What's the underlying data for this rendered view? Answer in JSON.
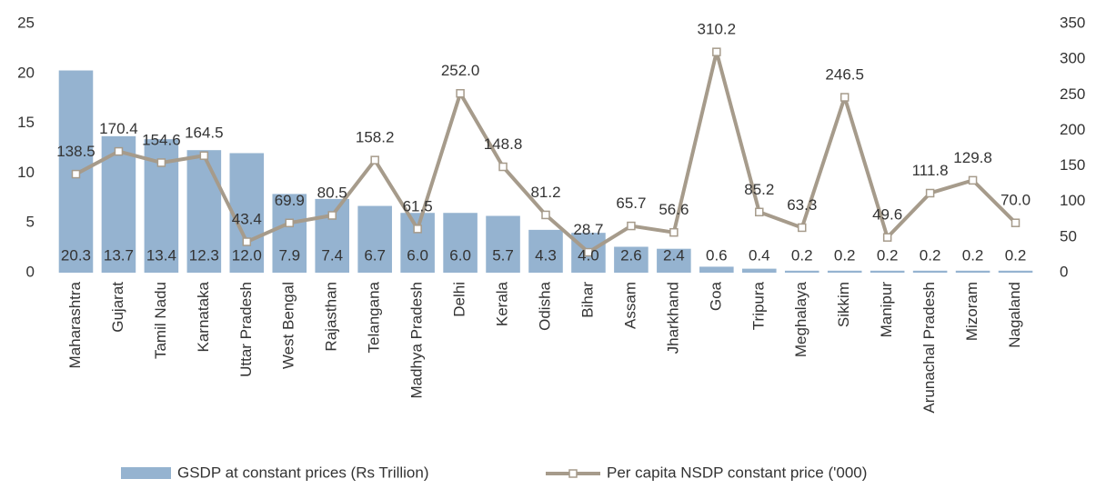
{
  "chart_data": {
    "type": "bar-line",
    "categories": [
      "Maharashtra",
      "Gujarat",
      "Tamil Nadu",
      "Karnataka",
      "Uttar Pradesh",
      "West Bengal",
      "Rajasthan",
      "Telangana",
      "Madhya Pradesh",
      "Delhi",
      "Kerala",
      "Odisha",
      "Bihar",
      "Assam",
      "Jharkhand",
      "Goa",
      "Tripura",
      "Meghalaya",
      "Sikkim",
      "Manipur",
      "Arunachal Pradesh",
      "Mizoram",
      "Nagaland"
    ],
    "series": [
      {
        "name": "GSDP at constant prices (Rs Trillion)",
        "type": "bar",
        "color": "#95b3d0",
        "values": [
          20.3,
          13.7,
          13.4,
          12.3,
          12.0,
          7.9,
          7.4,
          6.7,
          6.0,
          6.0,
          5.7,
          4.3,
          4.0,
          2.6,
          2.4,
          0.6,
          0.4,
          0.2,
          0.2,
          0.2,
          0.2,
          0.2,
          0.2
        ],
        "value_labels": [
          "20.3",
          "13.7",
          "13.4",
          "12.3",
          "12.0",
          "7.9",
          "7.4",
          "6.7",
          "6.0",
          "6.0",
          "5.7",
          "4.3",
          "4.0",
          "2.6",
          "2.4",
          "0.6",
          "0.4",
          "0.2",
          "0.2",
          "0.2",
          "0.2",
          "0.2",
          "0.2"
        ]
      },
      {
        "name": "Per capita NSDP constant price ('000)",
        "type": "line",
        "axis": "y2",
        "color": "#a69b8b",
        "values": [
          138.5,
          170.4,
          154.6,
          164.5,
          43.4,
          69.9,
          80.5,
          158.2,
          61.5,
          252.0,
          148.8,
          81.2,
          28.7,
          65.7,
          56.6,
          310.2,
          85.2,
          63.3,
          246.5,
          49.6,
          111.8,
          129.8,
          70.0
        ],
        "value_labels": [
          "138.5",
          "170.4",
          "154.6",
          "164.5",
          "43.4",
          "69.9",
          "80.5",
          "158.2",
          "61.5",
          "252.0",
          "148.8",
          "81.2",
          "28.7",
          "65.7",
          "56.6",
          "310.2",
          "85.2",
          "63.3",
          "246.5",
          "49.6",
          "111.8",
          "129.8",
          "70.0"
        ]
      }
    ],
    "ylim": [
      0,
      25
    ],
    "yticks": [
      0,
      5,
      10,
      15,
      20,
      25
    ],
    "y2lim": [
      0,
      350
    ],
    "y2ticks": [
      0,
      50,
      100,
      150,
      200,
      250,
      300,
      350
    ],
    "grid": false,
    "legend": "bottom"
  }
}
